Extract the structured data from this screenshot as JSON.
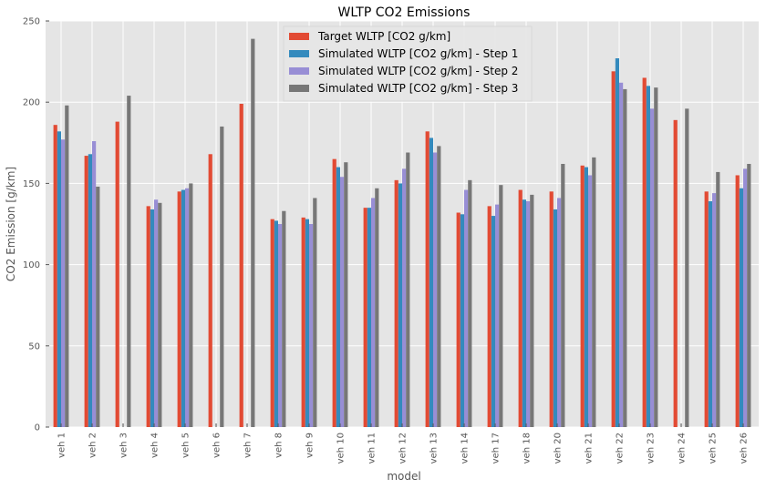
{
  "chart_data": {
    "type": "bar",
    "title": "WLTP CO2 Emissions",
    "xlabel": "model",
    "ylabel": "CO2 Emission [g/km]",
    "ylim": [
      0,
      250
    ],
    "yticks": [
      0,
      50,
      100,
      150,
      200,
      250
    ],
    "grid": true,
    "legend_position": "top-center",
    "categories": [
      "veh 1",
      "veh 2",
      "veh 3",
      "veh 4",
      "veh 5",
      "veh 6",
      "veh 7",
      "veh 8",
      "veh 9",
      "veh 10",
      "veh 11",
      "veh 12",
      "veh 13",
      "veh 14",
      "veh 17",
      "veh 18",
      "veh 20",
      "veh 21",
      "veh 22",
      "veh 23",
      "veh 24",
      "veh 25",
      "veh 26"
    ],
    "series": [
      {
        "name": "Target WLTP [CO2 g/km]",
        "color": "#e24a33",
        "values": [
          186,
          167,
          188,
          136,
          145,
          168,
          199,
          128,
          129,
          165,
          135,
          152,
          182,
          132,
          136,
          146,
          145,
          161,
          219,
          215,
          189,
          145,
          155
        ]
      },
      {
        "name": "Simulated WLTP [CO2 g/km] - Step 1",
        "color": "#348abd",
        "values": [
          182,
          168,
          null,
          134,
          146,
          null,
          null,
          127,
          128,
          160,
          135,
          150,
          178,
          131,
          130,
          140,
          134,
          160,
          227,
          210,
          null,
          139,
          147
        ]
      },
      {
        "name": "Simulated WLTP [CO2 g/km] - Step 2",
        "color": "#988ed5",
        "values": [
          177,
          176,
          null,
          140,
          147,
          null,
          null,
          125,
          125,
          154,
          141,
          159,
          169,
          146,
          137,
          139,
          141,
          155,
          212,
          196,
          null,
          144,
          159
        ]
      },
      {
        "name": "Simulated WLTP [CO2 g/km] - Step 3",
        "color": "#777777",
        "values": [
          198,
          148,
          204,
          138,
          150,
          185,
          239,
          133,
          141,
          163,
          147,
          169,
          173,
          152,
          149,
          143,
          162,
          166,
          208,
          209,
          196,
          157,
          162
        ]
      }
    ],
    "background": "#e5e5e5",
    "gridline_color": "#ffffff"
  }
}
